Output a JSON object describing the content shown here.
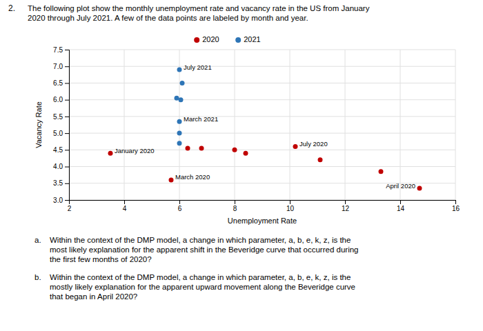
{
  "chart_data": {
    "type": "scatter",
    "question_number": "2.",
    "title": "The following plot show the monthly unemployment rate and vacancy rate in the US from January\n2020 through July 2021.  A few of the data points are labeled by month and year.",
    "xlabel": "Unemployment Rate",
    "ylabel": "Vacancy Rate",
    "xlim": [
      2.0,
      16.0
    ],
    "ylim": [
      3.0,
      7.5
    ],
    "xticks": [
      2,
      4,
      6,
      8,
      10,
      12,
      14,
      16
    ],
    "yticks": [
      {
        "value": 3,
        "label": "3.0"
      },
      3.5,
      {
        "value": 4,
        "label": "4.0"
      },
      4.5,
      {
        "value": 5,
        "label": "5.0"
      },
      5.5,
      {
        "value": 6,
        "label": "6.0"
      },
      6.5,
      {
        "value": 7,
        "label": "7.0"
      },
      7.5
    ],
    "grid": true,
    "legend": "top",
    "series": [
      {
        "name": "2020",
        "color": "#c00000",
        "x": [
          3.5,
          5.7,
          14.7,
          6.3,
          6.8,
          8.0,
          8.4,
          10.2,
          11.1,
          13.3
        ],
        "values": [
          4.4,
          3.6,
          3.35,
          4.55,
          4.55,
          4.5,
          4.4,
          4.6,
          4.2,
          3.85
        ],
        "labels": [
          "January 2020",
          "March 2020",
          "April 2020",
          null,
          null,
          null,
          null,
          "July 2020",
          null,
          null
        ]
      },
      {
        "name": "2021",
        "color": "#2e75b6",
        "x": [
          6.0,
          6.1,
          5.9,
          6.05,
          6.0,
          6.0,
          6.0
        ],
        "values": [
          6.9,
          6.5,
          6.05,
          6.0,
          5.35,
          5.0,
          4.7
        ],
        "labels": [
          "July 2021",
          null,
          null,
          null,
          "March 2021",
          null,
          null
        ]
      }
    ],
    "questions": [
      {
        "label": "a.",
        "text": "Within the context of the DMP model, a change in which parameter, a, b, e, k, z, is the\nmost likely explanation for the apparent shift in the Beveridge curve that occurred during\nthe first few months of 2020?"
      },
      {
        "label": "b.",
        "text": "Within the context of the DMP model, a change in which parameter, a, b, e, k, z, is the\nmostly likely explanation for the apparent upward movement along the Beveridge curve\nthat began in April 2020?"
      }
    ]
  }
}
